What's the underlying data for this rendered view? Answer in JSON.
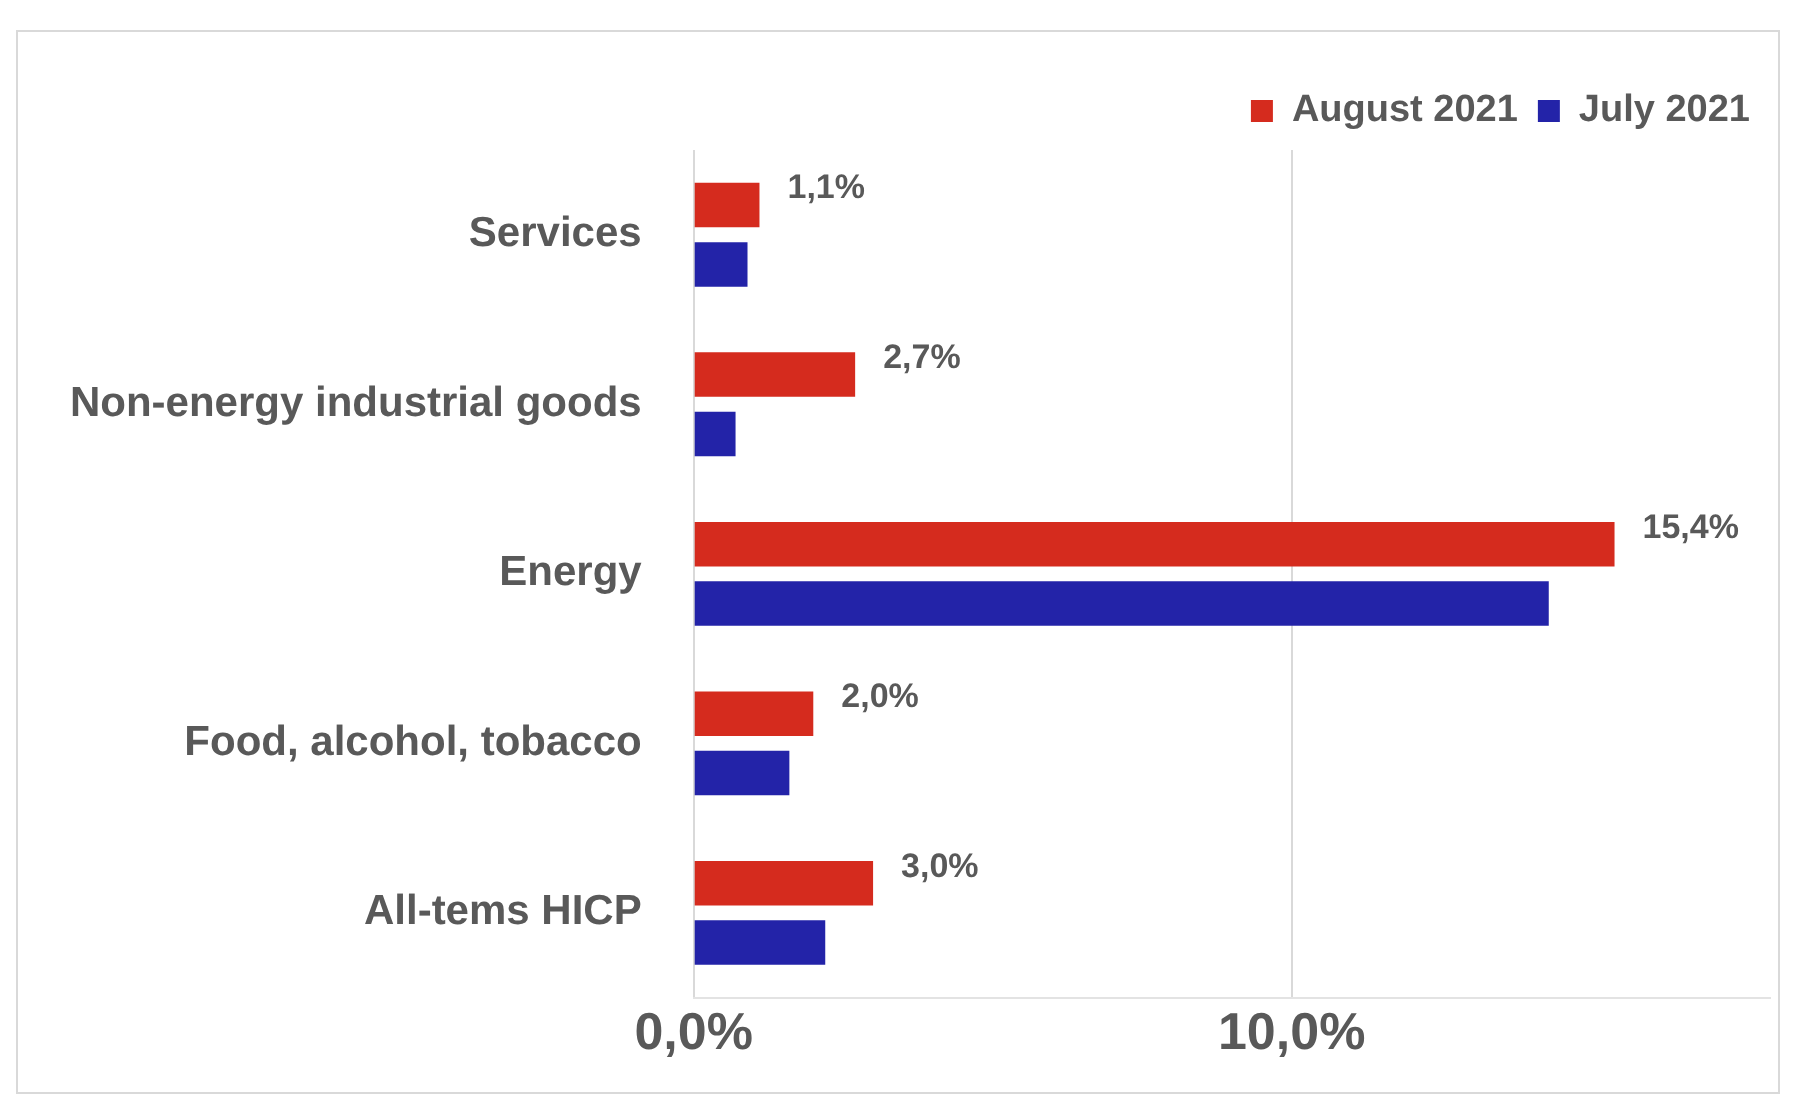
{
  "chart_data": {
    "type": "bar",
    "orientation": "horizontal",
    "categories": [
      "Services",
      "Non-energy industrial goods",
      "Energy",
      "Food, alcohol, tobacco",
      "All-tems HICP"
    ],
    "series": [
      {
        "name": "August 2021",
        "color": "#d52b1e",
        "values": [
          1.1,
          2.7,
          15.4,
          2.0,
          3.0
        ],
        "value_labels": [
          "1,1%",
          "2,7%",
          "15,4%",
          "2,0%",
          "3,0%"
        ]
      },
      {
        "name": "July 2021",
        "color": "#2323a8",
        "values": [
          0.9,
          0.7,
          14.3,
          1.6,
          2.2
        ]
      }
    ],
    "xlim": [
      0,
      18
    ],
    "xticks": [
      {
        "value": 0,
        "label": "0,0%"
      },
      {
        "value": 10,
        "label": "10,0%"
      }
    ],
    "grid": "x",
    "legend": "top right"
  }
}
